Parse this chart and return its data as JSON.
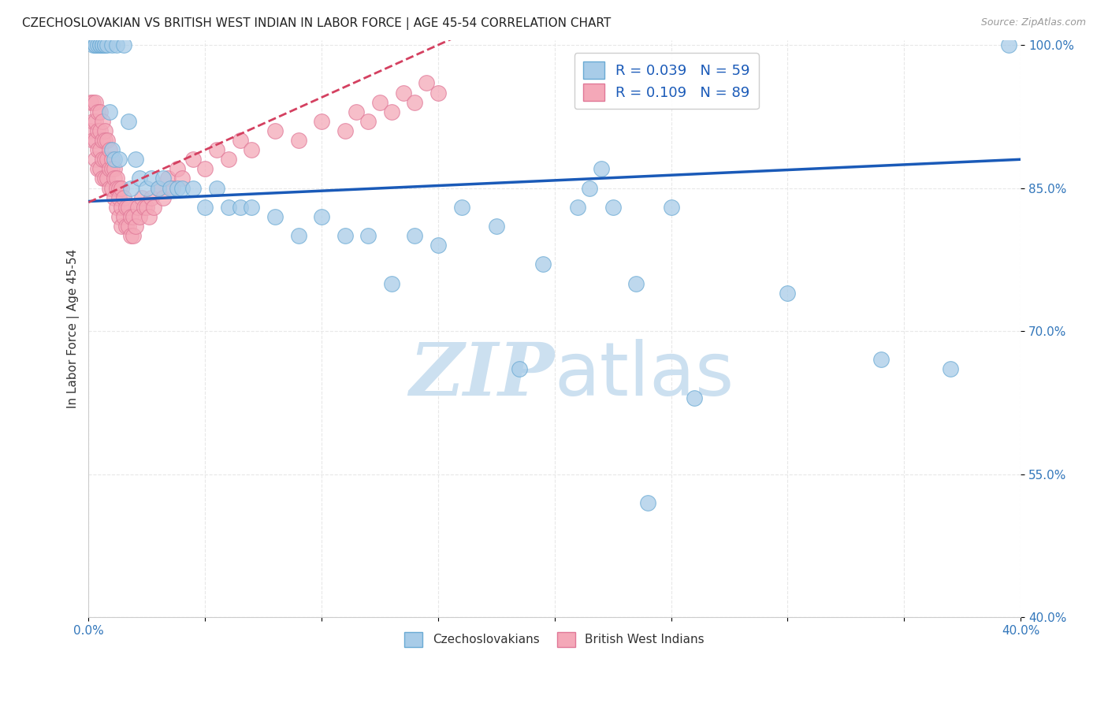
{
  "title": "CZECHOSLOVAKIAN VS BRITISH WEST INDIAN IN LABOR FORCE | AGE 45-54 CORRELATION CHART",
  "source": "Source: ZipAtlas.com",
  "ylabel": "In Labor Force | Age 45-54",
  "xlim": [
    0.0,
    0.4
  ],
  "ylim": [
    0.4,
    1.005
  ],
  "xticks": [
    0.0,
    0.05,
    0.1,
    0.15,
    0.2,
    0.25,
    0.3,
    0.35,
    0.4
  ],
  "xticklabels": [
    "0.0%",
    "",
    "",
    "",
    "",
    "",
    "",
    "",
    "40.0%"
  ],
  "yticks": [
    0.4,
    0.55,
    0.7,
    0.85,
    1.0
  ],
  "yticklabels": [
    "40.0%",
    "55.0%",
    "70.0%",
    "85.0%",
    "100.0%"
  ],
  "czech_R": 0.039,
  "czech_N": 59,
  "bwi_R": 0.109,
  "bwi_N": 89,
  "czech_color": "#a8cce8",
  "czech_edge_color": "#6aaad4",
  "bwi_color": "#f4a8b8",
  "bwi_edge_color": "#e07898",
  "trend_czech_color": "#1a5ab8",
  "trend_bwi_color": "#d44060",
  "watermark_color": "#cce0f0",
  "grid_color": "#e8e8e8",
  "czech_x": [
    0.002,
    0.003,
    0.003,
    0.004,
    0.005,
    0.005,
    0.006,
    0.006,
    0.007,
    0.007,
    0.008,
    0.009,
    0.01,
    0.01,
    0.011,
    0.012,
    0.013,
    0.015,
    0.017,
    0.018,
    0.02,
    0.022,
    0.025,
    0.027,
    0.03,
    0.032,
    0.035,
    0.038,
    0.04,
    0.045,
    0.05,
    0.055,
    0.06,
    0.065,
    0.07,
    0.08,
    0.09,
    0.1,
    0.11,
    0.12,
    0.13,
    0.14,
    0.15,
    0.16,
    0.175,
    0.185,
    0.195,
    0.21,
    0.215,
    0.22,
    0.225,
    0.235,
    0.24,
    0.25,
    0.26,
    0.3,
    0.34,
    0.37,
    0.395
  ],
  "czech_y": [
    1.0,
    1.0,
    1.0,
    1.0,
    1.0,
    1.0,
    1.0,
    1.0,
    1.0,
    1.0,
    1.0,
    0.93,
    0.89,
    1.0,
    0.88,
    1.0,
    0.88,
    1.0,
    0.92,
    0.85,
    0.88,
    0.86,
    0.85,
    0.86,
    0.85,
    0.86,
    0.85,
    0.85,
    0.85,
    0.85,
    0.83,
    0.85,
    0.83,
    0.83,
    0.83,
    0.82,
    0.8,
    0.82,
    0.8,
    0.8,
    0.75,
    0.8,
    0.79,
    0.83,
    0.81,
    0.66,
    0.77,
    0.83,
    0.85,
    0.87,
    0.83,
    0.75,
    0.52,
    0.83,
    0.63,
    0.74,
    0.67,
    0.66,
    1.0
  ],
  "bwi_x": [
    0.001,
    0.001,
    0.002,
    0.002,
    0.002,
    0.003,
    0.003,
    0.003,
    0.003,
    0.004,
    0.004,
    0.004,
    0.004,
    0.005,
    0.005,
    0.005,
    0.005,
    0.006,
    0.006,
    0.006,
    0.006,
    0.007,
    0.007,
    0.007,
    0.007,
    0.008,
    0.008,
    0.008,
    0.009,
    0.009,
    0.009,
    0.01,
    0.01,
    0.01,
    0.011,
    0.011,
    0.011,
    0.012,
    0.012,
    0.012,
    0.013,
    0.013,
    0.013,
    0.014,
    0.014,
    0.014,
    0.015,
    0.015,
    0.016,
    0.016,
    0.017,
    0.017,
    0.018,
    0.018,
    0.019,
    0.019,
    0.02,
    0.021,
    0.022,
    0.023,
    0.024,
    0.025,
    0.026,
    0.027,
    0.028,
    0.03,
    0.032,
    0.034,
    0.036,
    0.038,
    0.04,
    0.045,
    0.05,
    0.055,
    0.06,
    0.065,
    0.07,
    0.08,
    0.09,
    0.1,
    0.11,
    0.115,
    0.12,
    0.125,
    0.13,
    0.135,
    0.14,
    0.145,
    0.15
  ],
  "bwi_y": [
    0.94,
    0.91,
    0.94,
    0.92,
    0.9,
    0.94,
    0.92,
    0.9,
    0.88,
    0.93,
    0.91,
    0.89,
    0.87,
    0.93,
    0.91,
    0.89,
    0.87,
    0.92,
    0.9,
    0.88,
    0.86,
    0.91,
    0.9,
    0.88,
    0.86,
    0.9,
    0.88,
    0.86,
    0.89,
    0.87,
    0.85,
    0.88,
    0.87,
    0.85,
    0.87,
    0.86,
    0.84,
    0.86,
    0.85,
    0.83,
    0.85,
    0.84,
    0.82,
    0.85,
    0.83,
    0.81,
    0.84,
    0.82,
    0.83,
    0.81,
    0.83,
    0.81,
    0.82,
    0.8,
    0.82,
    0.8,
    0.81,
    0.83,
    0.82,
    0.84,
    0.83,
    0.83,
    0.82,
    0.84,
    0.83,
    0.85,
    0.84,
    0.86,
    0.85,
    0.87,
    0.86,
    0.88,
    0.87,
    0.89,
    0.88,
    0.9,
    0.89,
    0.91,
    0.9,
    0.92,
    0.91,
    0.93,
    0.92,
    0.94,
    0.93,
    0.95,
    0.94,
    0.96,
    0.95
  ]
}
